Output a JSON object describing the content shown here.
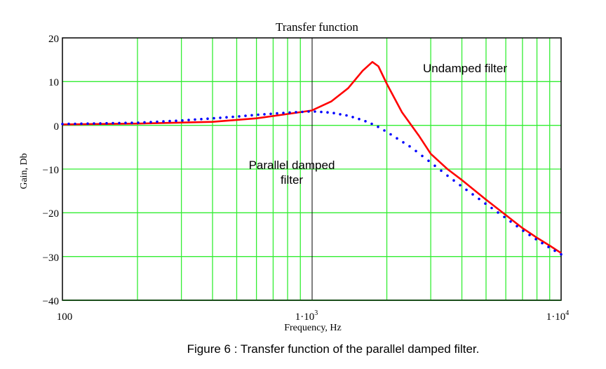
{
  "chart_data": {
    "type": "line",
    "title": "Transfer function",
    "xlabel": "Frequency, Hz",
    "ylabel": "Gain, Db",
    "xscale": "log",
    "xlim": [
      100,
      10000
    ],
    "ylim": [
      -40,
      20
    ],
    "x_tick_labels": [
      "100",
      "1·10^3",
      "1·10^4"
    ],
    "y_ticks": [
      20,
      10,
      0,
      -10,
      -20,
      -30,
      -40
    ],
    "grid": true,
    "series": [
      {
        "name": "Undamped filter",
        "style": "solid",
        "color": "#ff0000",
        "x": [
          100,
          200,
          400,
          600,
          800,
          1000,
          1200,
          1400,
          1600,
          1750,
          1850,
          2000,
          2300,
          2700,
          3000,
          3500,
          4000,
          5000,
          6000,
          7000,
          8000,
          9000,
          10000
        ],
        "y": [
          0.2,
          0.4,
          0.8,
          1.6,
          2.6,
          3.4,
          5.5,
          8.5,
          12.5,
          14.5,
          13.5,
          9.5,
          3.0,
          -2.5,
          -6.5,
          -10.0,
          -12.5,
          -17.0,
          -20.5,
          -23.5,
          -25.7,
          -27.5,
          -29.2
        ]
      },
      {
        "name": "Parallel damped filter",
        "style": "dotted",
        "color": "#0000ff",
        "x": [
          100,
          200,
          300,
          400,
          500,
          600,
          800,
          1000,
          1200,
          1400,
          1600,
          1800,
          2000,
          2500,
          3000,
          3500,
          4000,
          5000,
          6000,
          7000,
          8000,
          9000,
          10000
        ],
        "y": [
          0.3,
          0.6,
          1.1,
          1.6,
          2.0,
          2.4,
          2.9,
          3.2,
          2.9,
          2.2,
          1.2,
          0.0,
          -1.5,
          -5.0,
          -8.5,
          -11.5,
          -14.0,
          -18.0,
          -21.2,
          -24.0,
          -26.2,
          -28.0,
          -29.5
        ]
      }
    ],
    "annotations": [
      {
        "text": "Undamped filter",
        "x": 2600,
        "y": 13.5
      },
      {
        "text": "Parallel damped\nfilter",
        "x": 800,
        "y": -9.5
      }
    ]
  },
  "labels": {
    "title": "Transfer function",
    "xlabel": "Frequency, Hz",
    "ylabel": "Gain, Db",
    "y_ticks": [
      "20",
      "10",
      "0",
      "−10",
      "−20",
      "−30",
      "−40"
    ],
    "x_tick_100": "100",
    "x_tick_1e3_base": "1·10",
    "x_tick_1e3_exp": "3",
    "x_tick_1e4_base": "1·10",
    "x_tick_1e4_exp": "4",
    "annotation_undamped": "Undamped filter",
    "annotation_damped_line1": "Parallel damped",
    "annotation_damped_line2": "filter",
    "caption": "Figure 6 : Transfer function of the parallel damped filter."
  }
}
